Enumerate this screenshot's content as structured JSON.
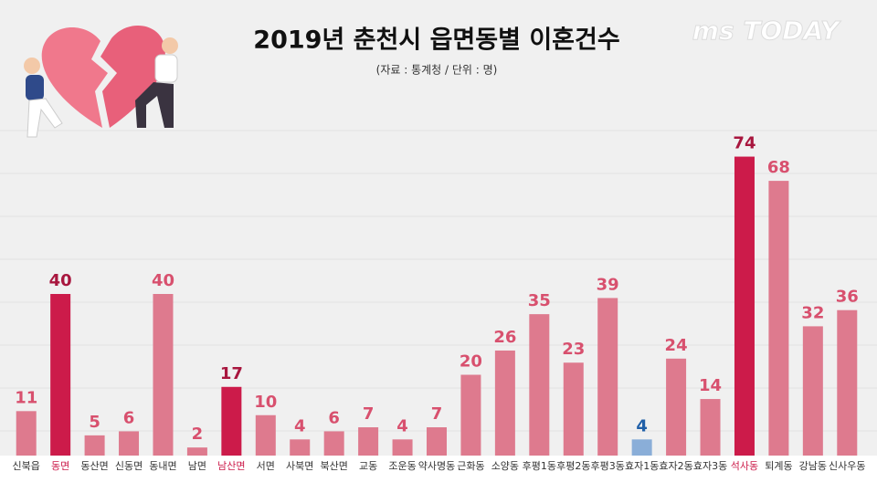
{
  "chart_data": {
    "type": "bar",
    "title": "2019년 춘천시 읍면동별 이혼건수",
    "subtitle": "(자료 : 통계청 / 단위 : 명)",
    "logo": "ms TODAY",
    "categories": [
      "신북읍",
      "동면",
      "동산면",
      "신동면",
      "동내면",
      "남면",
      "남산면",
      "서면",
      "사북면",
      "북산면",
      "교동",
      "조운동",
      "약사명동",
      "근화동",
      "소양동",
      "후평1동",
      "후평2동",
      "후평3동",
      "효자1동",
      "효자2동",
      "효자3동",
      "석사동",
      "퇴계동",
      "강남동",
      "신사우동"
    ],
    "values": [
      11,
      40,
      5,
      6,
      40,
      2,
      17,
      10,
      4,
      6,
      7,
      4,
      7,
      20,
      26,
      35,
      23,
      39,
      4,
      24,
      14,
      74,
      68,
      32,
      36
    ],
    "colors": [
      "#de7a8e",
      "#cc1b4a",
      "#de7a8e",
      "#de7a8e",
      "#de7a8e",
      "#de7a8e",
      "#cc1b4a",
      "#de7a8e",
      "#de7a8e",
      "#de7a8e",
      "#de7a8e",
      "#de7a8e",
      "#de7a8e",
      "#de7a8e",
      "#de7a8e",
      "#de7a8e",
      "#de7a8e",
      "#de7a8e",
      "#8aaed8",
      "#de7a8e",
      "#de7a8e",
      "#cc1b4a",
      "#de7a8e",
      "#de7a8e",
      "#de7a8e"
    ],
    "label_colors": [
      "#d8506e",
      "#a8163e",
      "#d8506e",
      "#d8506e",
      "#d8506e",
      "#d8506e",
      "#a8163e",
      "#d8506e",
      "#d8506e",
      "#d8506e",
      "#d8506e",
      "#d8506e",
      "#d8506e",
      "#d8506e",
      "#d8506e",
      "#d8506e",
      "#d8506e",
      "#d8506e",
      "#1f5fa8",
      "#d8506e",
      "#d8506e",
      "#a8163e",
      "#d8506e",
      "#d8506e",
      "#d8506e"
    ],
    "category_colors": [
      "#333333",
      "#cc1b4a",
      "#333333",
      "#333333",
      "#333333",
      "#333333",
      "#cc1b4a",
      "#333333",
      "#333333",
      "#333333",
      "#333333",
      "#333333",
      "#333333",
      "#333333",
      "#333333",
      "#333333",
      "#333333",
      "#333333",
      "#333333",
      "#333333",
      "#333333",
      "#cc1b4a",
      "#333333",
      "#333333",
      "#333333"
    ],
    "ylim": [
      0,
      80
    ]
  }
}
